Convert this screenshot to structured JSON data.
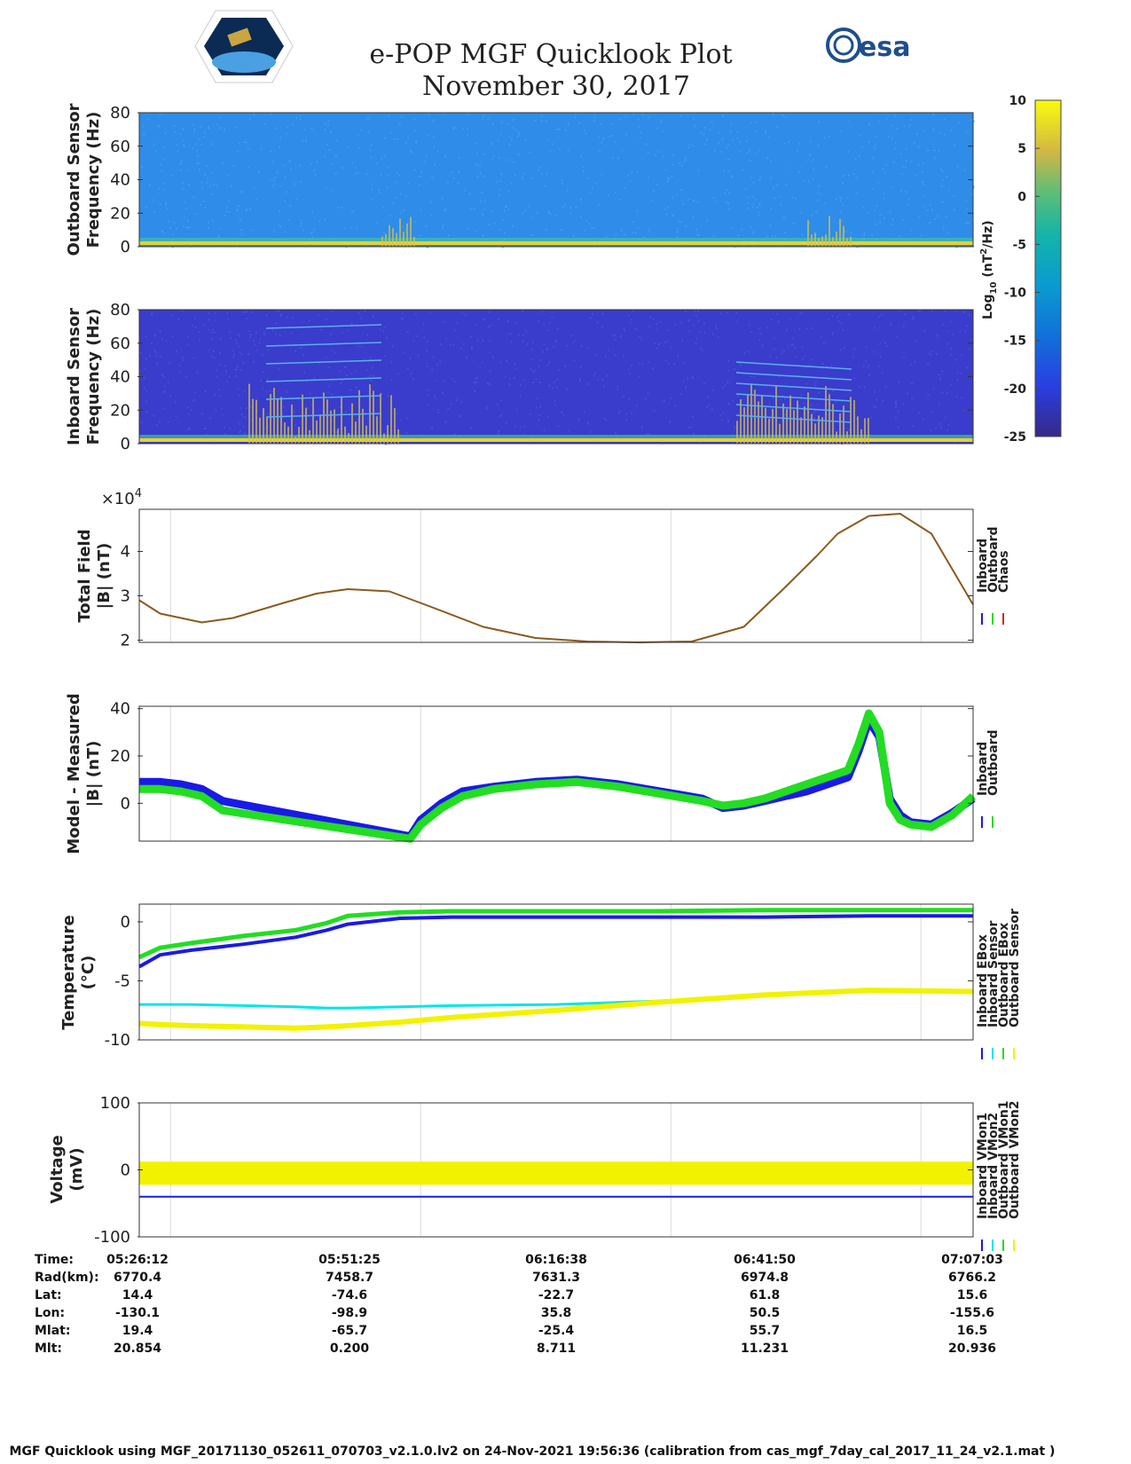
{
  "header": {
    "title": "e-POP MGF Quicklook Plot",
    "date": "November 30, 2017",
    "esa_logo_text": "esa"
  },
  "colors": {
    "inboard": "#1a1ae6",
    "outboard": "#22dd22",
    "chaos": "#dd2222",
    "cyan": "#00e6e6",
    "yellow": "#f2f200",
    "spec_bg_outboard": "#2f8ce8",
    "spec_bg_inboard": "#3a3ccc"
  },
  "chart_data": [
    {
      "id": "outboard_spectrogram",
      "type": "heatmap",
      "ylabel": [
        "Outboard Sensor",
        "Frequency (Hz)"
      ],
      "ylim": [
        0,
        80
      ],
      "yticks": [
        0,
        20,
        40,
        60,
        80
      ]
    },
    {
      "id": "inboard_spectrogram",
      "type": "heatmap",
      "ylabel": [
        "Inboard Sensor",
        "Frequency (Hz)"
      ],
      "ylim": [
        0,
        80
      ],
      "yticks": [
        0,
        20,
        40,
        60,
        80
      ]
    },
    {
      "id": "colorbar",
      "type": "heatmap",
      "label": "Log10 (nT2/Hz)",
      "label_base": "Log",
      "label_sub": "10",
      "label_unit_pre": "(nT",
      "label_sup": "2",
      "label_unit_post": "/Hz)",
      "range": [
        -25,
        10
      ],
      "ticks": [
        10,
        5,
        0,
        -5,
        -10,
        -15,
        -20,
        -25
      ]
    },
    {
      "id": "total_field",
      "type": "line",
      "ylabel": [
        "Total Field",
        "|B| (nT)"
      ],
      "exponent_label": "×10",
      "exponent": "4",
      "ylim": [
        1.95,
        4.95
      ],
      "yticks": [
        2,
        3,
        4
      ],
      "legend": [
        "Inboard",
        "Outboard",
        "Chaos"
      ],
      "x_minutes": [
        0,
        2,
        6,
        9,
        14,
        17,
        20,
        24,
        28,
        33,
        38,
        43,
        48,
        53,
        58,
        62,
        65,
        67,
        70,
        73,
        76,
        80
      ],
      "series": [
        {
          "name": "Outboard",
          "values": [
            2.9,
            2.6,
            2.4,
            2.5,
            2.85,
            3.05,
            3.15,
            3.1,
            2.75,
            2.3,
            2.05,
            1.97,
            1.95,
            1.97,
            2.3,
            3.2,
            3.9,
            4.4,
            4.8,
            4.85,
            4.4,
            2.8
          ]
        }
      ]
    },
    {
      "id": "model_measured",
      "type": "line",
      "ylabel": [
        "Model - Measured",
        "|B| (nT)"
      ],
      "ylim": [
        -16,
        41
      ],
      "yticks": [
        0,
        20,
        40
      ],
      "legend": [
        "Inboard",
        "Outboard"
      ],
      "x_minutes": [
        0,
        2,
        4,
        6,
        8,
        26,
        27,
        29,
        31,
        34,
        38,
        42,
        46,
        50,
        54,
        56,
        58,
        60,
        62,
        64,
        66,
        68,
        69,
        70,
        71,
        72,
        73,
        74,
        76,
        78,
        80
      ],
      "series": [
        {
          "name": "Inboard",
          "values": [
            9,
            9,
            8,
            6,
            1,
            -14,
            -7,
            0,
            5,
            7,
            9,
            10,
            8,
            5,
            2,
            -2,
            -1,
            1,
            3,
            5,
            8,
            11,
            22,
            35,
            28,
            2,
            -5,
            -8,
            -9,
            -4,
            2
          ]
        },
        {
          "name": "Outboard",
          "values": [
            6,
            6,
            5,
            3,
            -3,
            -15,
            -9,
            -2,
            3,
            6,
            8,
            9,
            7,
            4,
            1,
            -1,
            0,
            2,
            5,
            8,
            11,
            14,
            25,
            38,
            30,
            0,
            -7,
            -9,
            -10,
            -5,
            3
          ]
        }
      ]
    },
    {
      "id": "temperature",
      "type": "line",
      "ylabel": [
        "Temperature",
        "(°C)"
      ],
      "ylim": [
        -10,
        1.5
      ],
      "yticks": [
        0,
        -5,
        -10
      ],
      "legend": [
        "Inboard EBox",
        "Inboard Sensor",
        "Outboard EBox",
        "Outboard Sensor"
      ],
      "x_minutes": [
        0,
        2,
        5,
        10,
        15,
        18,
        20,
        25,
        30,
        40,
        50,
        60,
        70,
        80
      ],
      "series": [
        {
          "name": "Inboard EBox",
          "values": [
            -3.8,
            -2.8,
            -2.4,
            -1.9,
            -1.3,
            -0.7,
            -0.2,
            0.3,
            0.4,
            0.4,
            0.4,
            0.4,
            0.5,
            0.5
          ]
        },
        {
          "name": "Inboard Sensor",
          "values": [
            -7.0,
            -7.0,
            -7.0,
            -7.1,
            -7.2,
            -7.3,
            -7.3,
            -7.2,
            -7.1,
            -7.0,
            -6.7,
            -6.2,
            -5.9,
            -5.8
          ]
        },
        {
          "name": "Outboard EBox",
          "values": [
            -3.0,
            -2.2,
            -1.8,
            -1.2,
            -0.7,
            -0.1,
            0.5,
            0.8,
            0.9,
            0.9,
            0.9,
            1.0,
            1.0,
            1.0
          ]
        },
        {
          "name": "Outboard Sensor",
          "values": [
            -8.6,
            -8.7,
            -8.8,
            -8.9,
            -9.0,
            -8.9,
            -8.8,
            -8.5,
            -8.1,
            -7.5,
            -6.8,
            -6.2,
            -5.8,
            -5.9
          ]
        }
      ]
    },
    {
      "id": "voltage",
      "type": "line",
      "ylabel": [
        "Voltage",
        "(mV)"
      ],
      "ylim": [
        -100,
        100
      ],
      "yticks": [
        100,
        0,
        -100
      ],
      "legend": [
        "Inboard VMon1",
        "Inboard VMon2",
        "Outboard VMon1",
        "Outboard VMon2"
      ],
      "x_minutes": [
        0,
        20,
        40,
        60,
        80
      ],
      "series": [
        {
          "name": "Inboard VMon1",
          "values": [
            -40,
            -40,
            -40,
            -40,
            -40
          ]
        },
        {
          "name": "Inboard VMon2",
          "values": [
            -5,
            -5,
            -5,
            -5,
            -5
          ]
        },
        {
          "name": "Outboard VMon1",
          "values": [
            -8,
            -8,
            -8,
            -8,
            -8
          ]
        },
        {
          "name": "Outboard VMon2",
          "values": [
            -5,
            -5,
            -5,
            -5,
            -5
          ]
        }
      ]
    }
  ],
  "ephemeris": {
    "row_labels": [
      "Time:",
      "Rad(km):",
      "Lat:",
      "Lon:",
      "Mlat:",
      "Mlt:"
    ],
    "columns": [
      [
        "05:26:12",
        "6770.4",
        "14.4",
        "-130.1",
        "19.4",
        "20.854"
      ],
      [
        "05:51:25",
        "7458.7",
        "-74.6",
        "-98.9",
        "-65.7",
        "0.200"
      ],
      [
        "06:16:38",
        "7631.3",
        "-22.7",
        "35.8",
        "-25.4",
        "8.711"
      ],
      [
        "06:41:50",
        "6974.8",
        "61.8",
        "50.5",
        "55.7",
        "11.231"
      ],
      [
        "07:07:03",
        "6766.2",
        "15.6",
        "-155.6",
        "16.5",
        "20.936"
      ]
    ]
  },
  "footer": "MGF Quicklook using MGF_20171130_052611_070703_v2.1.0.lv2 on 24-Nov-2021 19:56:36 (calibration from cas_mgf_7day_cal_2017_11_24_v2.1.mat )"
}
